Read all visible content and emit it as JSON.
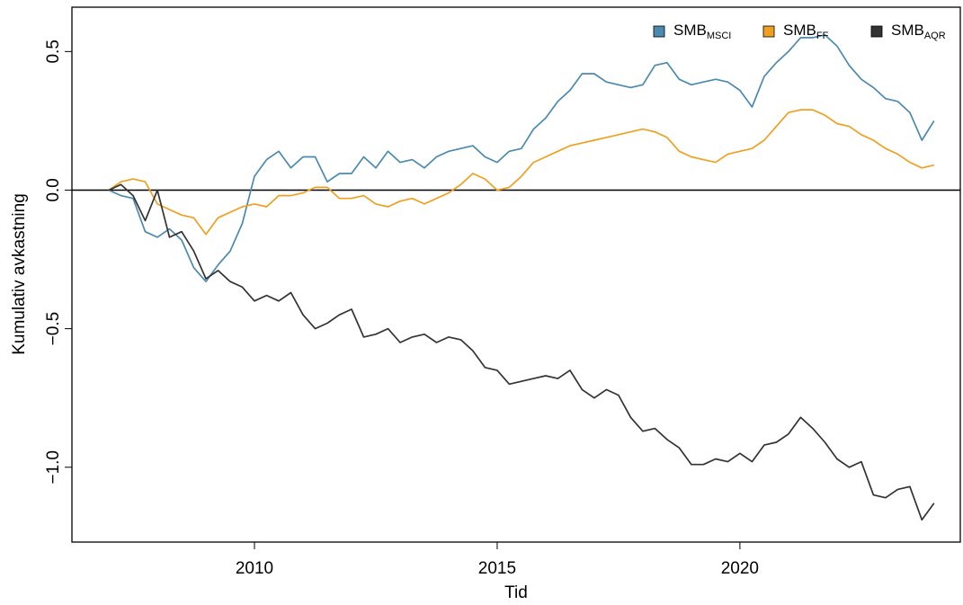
{
  "chart_data": {
    "type": "line",
    "x_label": "Tid",
    "y_label": "Kumulativ avkastning",
    "xlim": [
      2006.24,
      2024.54
    ],
    "ylim": [
      -1.27,
      0.66
    ],
    "xticks": [
      2010,
      2015,
      2020
    ],
    "yticks": [
      {
        "value": -1.0,
        "label": "−1.0"
      },
      {
        "value": -0.5,
        "label": "−0.5"
      },
      {
        "value": 0.0,
        "label": "0.0"
      },
      {
        "value": 0.5,
        "label": "0.5"
      }
    ],
    "reference_line": 0,
    "legend": "top-right",
    "x": [
      2007,
      2007.25,
      2007.5,
      2007.75,
      2008,
      2008.25,
      2008.5,
      2008.75,
      2009,
      2009.25,
      2009.5,
      2009.75,
      2010,
      2010.25,
      2010.5,
      2010.75,
      2011,
      2011.25,
      2011.5,
      2011.75,
      2012,
      2012.25,
      2012.5,
      2012.75,
      2013,
      2013.25,
      2013.5,
      2013.75,
      2014,
      2014.25,
      2014.5,
      2014.75,
      2015,
      2015.25,
      2015.5,
      2015.75,
      2016,
      2016.25,
      2016.5,
      2016.75,
      2017,
      2017.25,
      2017.5,
      2017.75,
      2018,
      2018.25,
      2018.5,
      2018.75,
      2019,
      2019.25,
      2019.5,
      2019.75,
      2020,
      2020.25,
      2020.5,
      2020.75,
      2021,
      2021.25,
      2021.5,
      2021.75,
      2022,
      2022.25,
      2022.5,
      2022.75,
      2023,
      2023.25,
      2023.5,
      2023.75,
      2024
    ],
    "series": [
      {
        "name": "SMB",
        "subscript": "MSCI",
        "color": "#4a8ab0",
        "values": [
          0.0,
          -0.02,
          -0.03,
          -0.15,
          -0.17,
          -0.14,
          -0.18,
          -0.28,
          -0.33,
          -0.27,
          -0.22,
          -0.12,
          0.05,
          0.11,
          0.14,
          0.08,
          0.12,
          0.12,
          0.03,
          0.06,
          0.06,
          0.12,
          0.08,
          0.14,
          0.1,
          0.11,
          0.08,
          0.12,
          0.14,
          0.15,
          0.16,
          0.12,
          0.1,
          0.14,
          0.15,
          0.22,
          0.26,
          0.32,
          0.36,
          0.42,
          0.42,
          0.39,
          0.38,
          0.37,
          0.38,
          0.45,
          0.46,
          0.4,
          0.38,
          0.39,
          0.4,
          0.39,
          0.36,
          0.3,
          0.41,
          0.46,
          0.5,
          0.55,
          0.55,
          0.56,
          0.52,
          0.45,
          0.4,
          0.37,
          0.33,
          0.32,
          0.28,
          0.18,
          0.25
        ]
      },
      {
        "name": "SMB",
        "subscript": "FF",
        "color": "#f0a020",
        "values": [
          0.0,
          0.03,
          0.04,
          0.03,
          -0.05,
          -0.07,
          -0.09,
          -0.1,
          -0.16,
          -0.1,
          -0.08,
          -0.06,
          -0.05,
          -0.06,
          -0.02,
          -0.02,
          -0.01,
          0.01,
          0.01,
          -0.03,
          -0.03,
          -0.02,
          -0.05,
          -0.06,
          -0.04,
          -0.03,
          -0.05,
          -0.03,
          -0.01,
          0.02,
          0.06,
          0.04,
          0.0,
          0.01,
          0.05,
          0.1,
          0.12,
          0.14,
          0.16,
          0.17,
          0.18,
          0.19,
          0.2,
          0.21,
          0.22,
          0.21,
          0.19,
          0.14,
          0.12,
          0.11,
          0.1,
          0.13,
          0.14,
          0.15,
          0.18,
          0.23,
          0.28,
          0.29,
          0.29,
          0.27,
          0.24,
          0.23,
          0.2,
          0.18,
          0.15,
          0.13,
          0.1,
          0.08,
          0.09
        ]
      },
      {
        "name": "SMB",
        "subscript": "AQR",
        "color": "#333333",
        "values": [
          0.0,
          0.02,
          -0.02,
          -0.11,
          0.0,
          -0.17,
          -0.15,
          -0.22,
          -0.32,
          -0.29,
          -0.33,
          -0.35,
          -0.4,
          -0.38,
          -0.4,
          -0.37,
          -0.45,
          -0.5,
          -0.48,
          -0.45,
          -0.43,
          -0.53,
          -0.52,
          -0.5,
          -0.55,
          -0.53,
          -0.52,
          -0.55,
          -0.53,
          -0.54,
          -0.58,
          -0.64,
          -0.65,
          -0.7,
          -0.69,
          -0.68,
          -0.67,
          -0.68,
          -0.65,
          -0.72,
          -0.75,
          -0.72,
          -0.74,
          -0.82,
          -0.87,
          -0.86,
          -0.9,
          -0.93,
          -0.99,
          -0.99,
          -0.97,
          -0.98,
          -0.95,
          -0.98,
          -0.92,
          -0.91,
          -0.88,
          -0.82,
          -0.86,
          -0.91,
          -0.97,
          -1.0,
          -0.98,
          -1.1,
          -1.11,
          -1.08,
          -1.07,
          -1.19,
          -1.13
        ]
      }
    ]
  }
}
